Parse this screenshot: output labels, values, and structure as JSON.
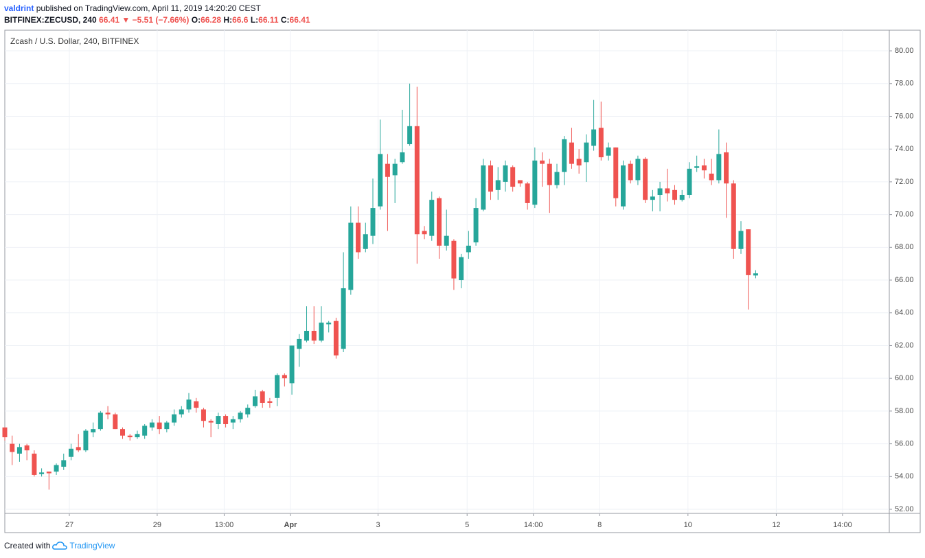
{
  "header": {
    "author": "valdrint",
    "published": "published on TradingView.com, April 11, 2019 14:20:20 CEST",
    "symbol": "BITFINEX:ZECUSD, 240",
    "arrow": "▼",
    "change": "−5.51 (−7.66%)",
    "ohlc_labels": [
      "O:",
      "H:",
      "L:",
      "C:"
    ]
  },
  "footer": {
    "created": "Created with",
    "brand": "TradingView"
  },
  "chart_data": {
    "type": "candlestick",
    "title": "Zcash / U.S. Dollar, 240, BITFINEX",
    "up_color": "#26a69a",
    "down_color": "#ef5350",
    "grid": true,
    "x": [
      0,
      1,
      2,
      3,
      4,
      5,
      6,
      7,
      8,
      9,
      10,
      11,
      12,
      13,
      14,
      15,
      16,
      17,
      18,
      19,
      20,
      21,
      22,
      23,
      24,
      25,
      26,
      27,
      28,
      29,
      30,
      31,
      32,
      33,
      34,
      35,
      36,
      37,
      38,
      39,
      40,
      41,
      42,
      43,
      44,
      45,
      46,
      47,
      48,
      49,
      50,
      51,
      52,
      53,
      54,
      55,
      56,
      57,
      58,
      59,
      60,
      61,
      62,
      63,
      64,
      65,
      66,
      67,
      68,
      69,
      70,
      71,
      72,
      73,
      74,
      75,
      76,
      77,
      78,
      79,
      80,
      81,
      82,
      83,
      84,
      85,
      86,
      87,
      88,
      89,
      90,
      91,
      92,
      93,
      94,
      95,
      96,
      97,
      98,
      99,
      100,
      101,
      102
    ],
    "open": [
      57.0,
      56.0,
      55.4,
      55.9,
      55.4,
      54.15,
      54.3,
      54.3,
      54.6,
      55.2,
      55.8,
      55.6,
      56.7,
      56.9,
      57.9,
      57.8,
      56.9,
      56.5,
      56.4,
      56.5,
      57.0,
      57.3,
      56.9,
      57.3,
      57.8,
      58.1,
      58.6,
      58.1,
      57.4,
      57.2,
      57.7,
      57.3,
      57.5,
      57.8,
      58.3,
      59.2,
      58.6,
      58.8,
      60.2,
      59.7,
      61.8,
      62.3,
      62.9,
      62.3,
      63.3,
      63.5,
      61.8,
      65.4,
      69.5,
      67.9,
      68.7,
      70.5,
      73.1,
      72.4,
      73.2,
      74.3,
      75.4,
      69.0,
      68.7,
      71.0,
      68.1,
      68.4,
      66.0,
      67.7,
      68.3,
      70.3,
      73.0,
      71.5,
      72.0,
      72.9,
      72.1,
      71.9,
      70.6,
      73.3,
      73.1,
      71.8,
      72.6,
      74.4,
      73.4,
      73.2,
      74.2,
      75.3,
      73.6,
      74.1,
      70.5,
      73.1,
      72.1,
      73.4,
      70.9,
      71.2,
      71.6,
      71.5,
      70.9,
      71.2,
      72.85,
      73.0,
      72.5,
      72.1,
      73.8,
      71.9,
      67.9,
      69.1,
      66.28
    ],
    "high": [
      57.0,
      56.5,
      56.0,
      56.0,
      55.6,
      54.5,
      54.3,
      54.8,
      55.4,
      56.0,
      56.6,
      56.9,
      57.3,
      58.0,
      58.3,
      57.9,
      57.0,
      56.6,
      56.8,
      57.2,
      57.5,
      57.7,
      57.4,
      58.1,
      58.3,
      59.1,
      58.8,
      58.2,
      57.5,
      57.9,
      57.8,
      57.7,
      58.0,
      58.4,
      59.3,
      59.3,
      58.8,
      60.3,
      60.3,
      62.0,
      62.7,
      64.4,
      64.4,
      64.4,
      63.5,
      63.7,
      67.7,
      70.5,
      70.5,
      69.5,
      72.2,
      75.8,
      73.7,
      73.4,
      76.4,
      78.0,
      77.8,
      69.3,
      71.4,
      71.1,
      70.3,
      68.5,
      67.6,
      69.0,
      71.0,
      73.4,
      73.3,
      72.9,
      73.3,
      73.0,
      72.1,
      72.0,
      74.1,
      73.8,
      73.4,
      73.1,
      74.8,
      75.3,
      74.0,
      74.9,
      77.0,
      76.9,
      74.4,
      74.1,
      73.3,
      73.3,
      73.6,
      73.5,
      71.5,
      72.0,
      72.8,
      71.8,
      71.5,
      73.2,
      73.6,
      73.4,
      73.4,
      75.2,
      74.4,
      72.1,
      69.6,
      69.1,
      66.6
    ],
    "low": [
      56.2,
      54.7,
      54.9,
      55.0,
      54.0,
      54.0,
      53.2,
      54.1,
      54.4,
      55.0,
      55.5,
      55.5,
      56.4,
      56.8,
      57.5,
      56.9,
      56.3,
      56.2,
      56.3,
      56.3,
      56.8,
      56.6,
      56.7,
      57.1,
      57.6,
      57.9,
      57.9,
      57.0,
      56.4,
      56.9,
      57.0,
      56.9,
      57.3,
      57.6,
      58.2,
      58.2,
      58.2,
      58.3,
      59.5,
      59.0,
      60.7,
      62.2,
      62.1,
      62.2,
      62.8,
      61.2,
      61.6,
      65.1,
      67.3,
      67.7,
      68.2,
      70.3,
      69.0,
      70.7,
      73.1,
      74.2,
      67.0,
      68.5,
      68.4,
      67.3,
      67.8,
      65.4,
      65.5,
      67.3,
      68.1,
      70.2,
      70.9,
      70.9,
      71.4,
      71.4,
      71.7,
      70.3,
      70.4,
      71.7,
      70.1,
      71.6,
      71.8,
      72.8,
      72.5,
      72.0,
      73.9,
      73.3,
      73.3,
      70.5,
      70.3,
      71.9,
      71.8,
      70.7,
      70.2,
      70.2,
      70.8,
      70.6,
      70.8,
      71.0,
      72.6,
      72.2,
      71.8,
      71.9,
      69.8,
      67.3,
      67.6,
      64.2,
      66.11
    ],
    "close": [
      56.4,
      55.5,
      55.8,
      55.6,
      54.1,
      54.25,
      54.2,
      54.7,
      55.0,
      55.7,
      55.6,
      56.8,
      56.9,
      57.9,
      57.8,
      56.9,
      56.5,
      56.4,
      56.6,
      57.1,
      57.3,
      56.9,
      57.3,
      57.8,
      58.1,
      58.7,
      58.2,
      57.4,
      57.3,
      57.7,
      57.2,
      57.5,
      57.9,
      58.2,
      58.9,
      58.5,
      58.5,
      60.2,
      60.0,
      62.0,
      62.4,
      62.9,
      62.3,
      63.4,
      63.4,
      61.4,
      65.5,
      69.5,
      67.7,
      68.8,
      70.4,
      73.7,
      72.3,
      73.1,
      73.8,
      75.4,
      68.8,
      68.8,
      70.9,
      68.1,
      68.7,
      66.1,
      67.4,
      68.1,
      70.4,
      73.0,
      71.4,
      72.1,
      73.0,
      71.7,
      71.9,
      70.7,
      73.3,
      73.1,
      71.8,
      72.6,
      74.6,
      73.1,
      73.0,
      74.4,
      75.2,
      73.5,
      74.1,
      71.0,
      73.0,
      72.1,
      73.4,
      70.9,
      71.1,
      71.6,
      71.3,
      70.9,
      71.2,
      72.8,
      72.95,
      72.7,
      72.1,
      73.7,
      71.9,
      67.9,
      69.0,
      66.3,
      66.41
    ],
    "ylim": [
      51.75,
      81.26
    ],
    "yticks": [
      {
        "value": 52,
        "label": "52.00"
      },
      {
        "value": 54,
        "label": "54.00"
      },
      {
        "value": 56,
        "label": "56.00"
      },
      {
        "value": 58,
        "label": "58.00"
      },
      {
        "value": 60,
        "label": "60.00"
      },
      {
        "value": 62,
        "label": "62.00"
      },
      {
        "value": 64,
        "label": "64.00"
      },
      {
        "value": 66,
        "label": "66.00"
      },
      {
        "value": 68,
        "label": "68.00"
      },
      {
        "value": 70,
        "label": "70.00"
      },
      {
        "value": 72,
        "label": "72.00"
      },
      {
        "value": 74,
        "label": "74.00"
      },
      {
        "value": 76,
        "label": "76.00"
      },
      {
        "value": 78,
        "label": "78.00"
      },
      {
        "value": 80,
        "label": "80.00"
      }
    ],
    "xlim": [
      0,
      120.15
    ],
    "xticks": [
      {
        "value": 8.77,
        "label": "27"
      },
      {
        "value": 20.7,
        "label": "29"
      },
      {
        "value": 29.8,
        "label": "13:00"
      },
      {
        "value": 38.8,
        "label": "Apr"
      },
      {
        "value": 50.7,
        "label": "3"
      },
      {
        "value": 62.8,
        "label": "5"
      },
      {
        "value": 71.8,
        "label": "14:00"
      },
      {
        "value": 80.8,
        "label": "8"
      },
      {
        "value": 92.8,
        "label": "10"
      },
      {
        "value": 104.8,
        "label": "12"
      },
      {
        "value": 113.8,
        "label": "14:00"
      }
    ]
  }
}
